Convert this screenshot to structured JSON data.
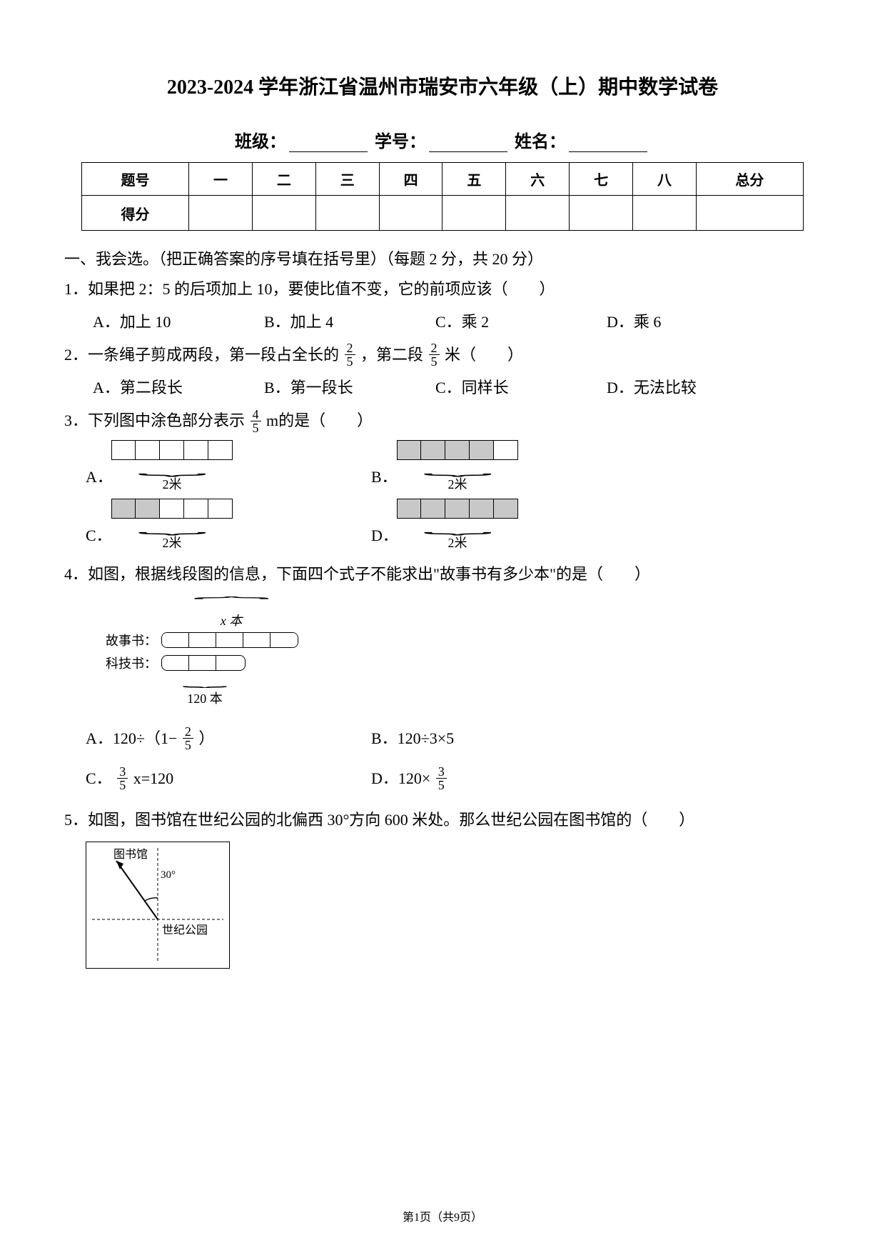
{
  "page": {
    "title": "2023-2024 学年浙江省温州市瑞安市六年级（上）期中数学试卷",
    "meta": {
      "class_label": "班级：",
      "id_label": "学号：",
      "name_label": "姓名："
    },
    "footer": "第1页（共9页）"
  },
  "score_table": {
    "row1": [
      "题号",
      "一",
      "二",
      "三",
      "四",
      "五",
      "六",
      "七",
      "八",
      "总分"
    ],
    "row2_label": "得分"
  },
  "section1": {
    "heading": "一、我会选。（把正确答案的序号填在括号里）（每题 2 分，共 20 分）",
    "q1": {
      "text": "1．如果把 2：5 的后项加上 10，要使比值不变，它的前项应该（　　）",
      "opts": {
        "A": "A．加上 10",
        "B": "B．加上 4",
        "C": "C．乘 2",
        "D": "D．乘 6"
      }
    },
    "q2": {
      "text_pre": "2．一条绳子剪成两段，第一段占全长的",
      "frac1": {
        "n": "2",
        "d": "5"
      },
      "text_mid": "，第二段",
      "frac2": {
        "n": "2",
        "d": "5"
      },
      "text_post": "米（　　）",
      "opts": {
        "A": "A．第二段长",
        "B": "B．第一段长",
        "C": "C．同样长",
        "D": "D．无法比较"
      }
    },
    "q3": {
      "text_pre": "3．下列图中涂色部分表示",
      "frac": {
        "n": "4",
        "d": "5"
      },
      "text_post": "m的是（　　）",
      "unit_label": "2米",
      "labels": {
        "A": "A．",
        "B": "B．",
        "C": "C．",
        "D": "D．"
      },
      "shade_patterns": {
        "A": [
          0,
          0,
          0,
          0,
          0
        ],
        "B": [
          1,
          1,
          1,
          1,
          0
        ],
        "C": [
          1,
          1,
          0,
          0,
          0
        ],
        "D": [
          1,
          1,
          1,
          1,
          1
        ]
      }
    },
    "q4": {
      "text": "4．如图，根据线段图的信息，下面四个式子不能求出\"故事书有多少本\"的是（　　）",
      "diagram": {
        "x_label": "x 本",
        "story_label": "故事书：",
        "tech_label": "科技书：",
        "count_label": "120 本"
      },
      "opts": {
        "A_pre": "A．120÷（1−",
        "A_frac": {
          "n": "2",
          "d": "5"
        },
        "A_post": "）",
        "B": "B．120÷3×5",
        "C_pre": "C．",
        "C_frac": {
          "n": "3",
          "d": "5"
        },
        "C_post": "x=120",
        "D_pre": "D．120×",
        "D_frac": {
          "n": "3",
          "d": "5"
        }
      }
    },
    "q5": {
      "text": "5．如图，图书馆在世纪公园的北偏西 30°方向 600 米处。那么世纪公园在图书馆的（　　）",
      "diagram": {
        "lib": "图书馆",
        "park": "世纪公园",
        "angle": "30°"
      }
    }
  },
  "style": {
    "page_bg": "#ffffff",
    "text_color": "#000000",
    "shade_color": "#c8c8c8",
    "border_color": "#000000",
    "title_fs": 28,
    "body_fs": 22,
    "small_fs": 18
  }
}
